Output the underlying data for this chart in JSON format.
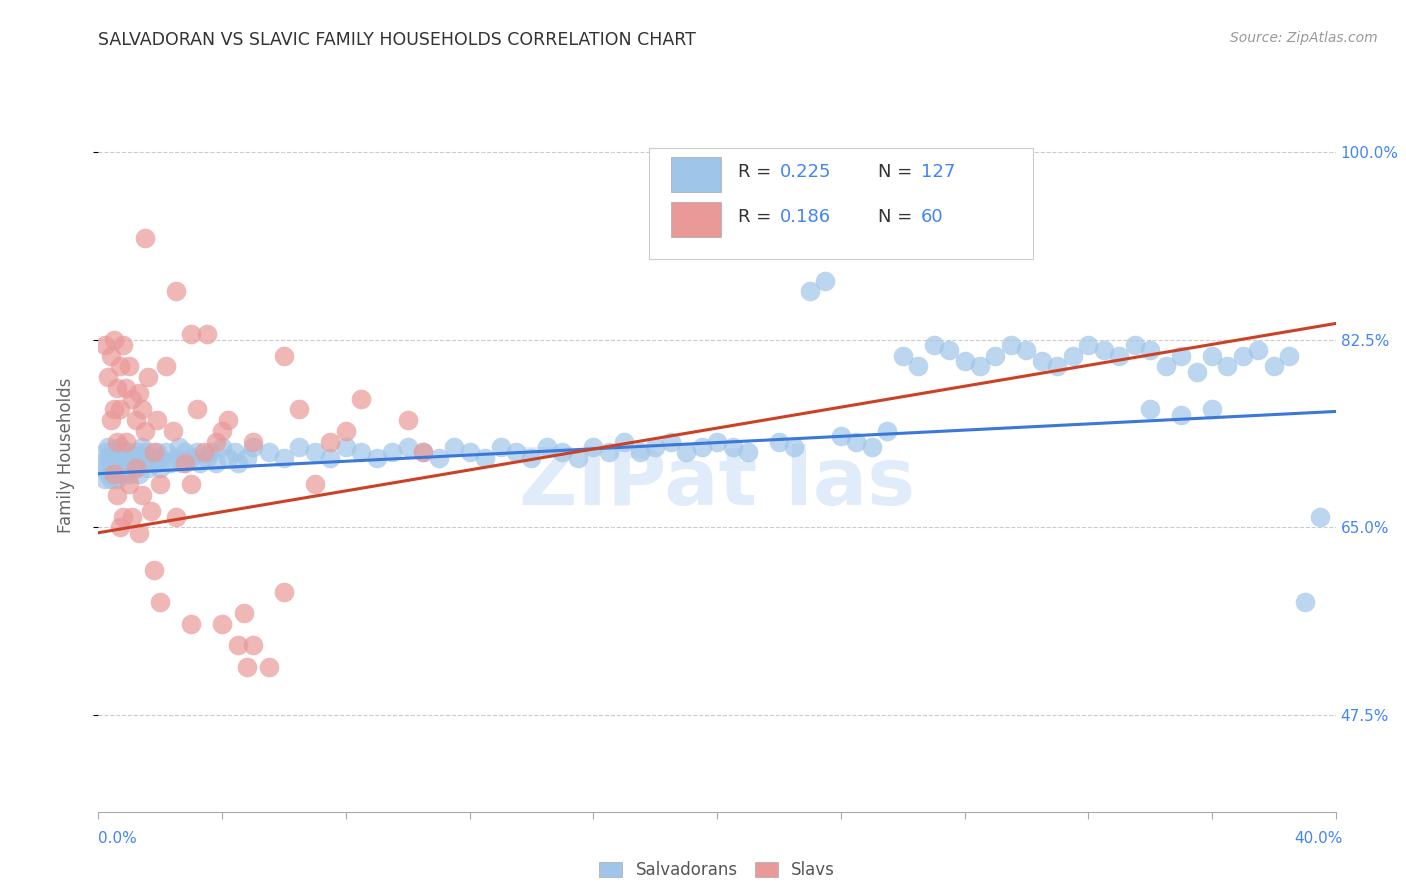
{
  "title": "SALVADORAN VS SLAVIC FAMILY HOUSEHOLDS CORRELATION CHART",
  "source": "Source: ZipAtlas.com",
  "ylabel": "Family Households",
  "yticks": [
    "47.5%",
    "65.0%",
    "82.5%",
    "100.0%"
  ],
  "ytick_vals": [
    0.475,
    0.65,
    0.825,
    1.0
  ],
  "xlim": [
    0.0,
    0.4
  ],
  "ylim": [
    0.385,
    1.05
  ],
  "blue_color": "#9fc5e8",
  "pink_color": "#ea9999",
  "blue_line_color": "#3c78d8",
  "pink_line_color": "#cc4125",
  "legend_text_color": "#4285f4",
  "watermark_color": "#cce0f5",
  "blue_line_y0": 0.7,
  "blue_line_y1": 0.758,
  "pink_line_y0": 0.645,
  "pink_line_y1": 0.84,
  "blue_scatter": [
    [
      0.001,
      0.71
    ],
    [
      0.002,
      0.705
    ],
    [
      0.002,
      0.72
    ],
    [
      0.002,
      0.695
    ],
    [
      0.003,
      0.715
    ],
    [
      0.003,
      0.7
    ],
    [
      0.003,
      0.725
    ],
    [
      0.004,
      0.71
    ],
    [
      0.004,
      0.695
    ],
    [
      0.004,
      0.72
    ],
    [
      0.005,
      0.705
    ],
    [
      0.005,
      0.715
    ],
    [
      0.005,
      0.7
    ],
    [
      0.006,
      0.71
    ],
    [
      0.006,
      0.72
    ],
    [
      0.006,
      0.695
    ],
    [
      0.007,
      0.715
    ],
    [
      0.007,
      0.705
    ],
    [
      0.007,
      0.725
    ],
    [
      0.008,
      0.71
    ],
    [
      0.008,
      0.7
    ],
    [
      0.008,
      0.72
    ],
    [
      0.009,
      0.715
    ],
    [
      0.009,
      0.705
    ],
    [
      0.01,
      0.71
    ],
    [
      0.01,
      0.72
    ],
    [
      0.01,
      0.7
    ],
    [
      0.011,
      0.715
    ],
    [
      0.012,
      0.705
    ],
    [
      0.012,
      0.72
    ],
    [
      0.013,
      0.71
    ],
    [
      0.013,
      0.7
    ],
    [
      0.014,
      0.715
    ],
    [
      0.014,
      0.725
    ],
    [
      0.015,
      0.71
    ],
    [
      0.015,
      0.72
    ],
    [
      0.016,
      0.705
    ],
    [
      0.017,
      0.715
    ],
    [
      0.018,
      0.71
    ],
    [
      0.019,
      0.72
    ],
    [
      0.02,
      0.715
    ],
    [
      0.02,
      0.705
    ],
    [
      0.022,
      0.72
    ],
    [
      0.023,
      0.71
    ],
    [
      0.025,
      0.715
    ],
    [
      0.026,
      0.725
    ],
    [
      0.027,
      0.71
    ],
    [
      0.028,
      0.72
    ],
    [
      0.03,
      0.715
    ],
    [
      0.032,
      0.72
    ],
    [
      0.033,
      0.71
    ],
    [
      0.035,
      0.715
    ],
    [
      0.036,
      0.72
    ],
    [
      0.038,
      0.71
    ],
    [
      0.04,
      0.725
    ],
    [
      0.042,
      0.715
    ],
    [
      0.044,
      0.72
    ],
    [
      0.045,
      0.71
    ],
    [
      0.048,
      0.715
    ],
    [
      0.05,
      0.725
    ],
    [
      0.055,
      0.72
    ],
    [
      0.06,
      0.715
    ],
    [
      0.065,
      0.725
    ],
    [
      0.07,
      0.72
    ],
    [
      0.075,
      0.715
    ],
    [
      0.08,
      0.725
    ],
    [
      0.085,
      0.72
    ],
    [
      0.09,
      0.715
    ],
    [
      0.095,
      0.72
    ],
    [
      0.1,
      0.725
    ],
    [
      0.105,
      0.72
    ],
    [
      0.11,
      0.715
    ],
    [
      0.115,
      0.725
    ],
    [
      0.12,
      0.72
    ],
    [
      0.125,
      0.715
    ],
    [
      0.13,
      0.725
    ],
    [
      0.135,
      0.72
    ],
    [
      0.14,
      0.715
    ],
    [
      0.145,
      0.725
    ],
    [
      0.15,
      0.72
    ],
    [
      0.155,
      0.715
    ],
    [
      0.16,
      0.725
    ],
    [
      0.165,
      0.72
    ],
    [
      0.17,
      0.73
    ],
    [
      0.175,
      0.72
    ],
    [
      0.18,
      0.725
    ],
    [
      0.185,
      0.73
    ],
    [
      0.19,
      0.72
    ],
    [
      0.195,
      0.725
    ],
    [
      0.2,
      0.73
    ],
    [
      0.205,
      0.725
    ],
    [
      0.21,
      0.72
    ],
    [
      0.22,
      0.73
    ],
    [
      0.225,
      0.725
    ],
    [
      0.23,
      0.87
    ],
    [
      0.235,
      0.88
    ],
    [
      0.24,
      0.735
    ],
    [
      0.245,
      0.73
    ],
    [
      0.25,
      0.725
    ],
    [
      0.255,
      0.74
    ],
    [
      0.26,
      0.81
    ],
    [
      0.265,
      0.8
    ],
    [
      0.27,
      0.82
    ],
    [
      0.275,
      0.815
    ],
    [
      0.28,
      0.805
    ],
    [
      0.285,
      0.8
    ],
    [
      0.29,
      0.81
    ],
    [
      0.295,
      0.82
    ],
    [
      0.3,
      0.815
    ],
    [
      0.305,
      0.805
    ],
    [
      0.31,
      0.8
    ],
    [
      0.315,
      0.81
    ],
    [
      0.32,
      0.82
    ],
    [
      0.325,
      0.815
    ],
    [
      0.33,
      0.81
    ],
    [
      0.335,
      0.82
    ],
    [
      0.34,
      0.815
    ],
    [
      0.345,
      0.8
    ],
    [
      0.35,
      0.81
    ],
    [
      0.355,
      0.795
    ],
    [
      0.36,
      0.81
    ],
    [
      0.365,
      0.8
    ],
    [
      0.37,
      0.81
    ],
    [
      0.375,
      0.815
    ],
    [
      0.38,
      0.8
    ],
    [
      0.385,
      0.81
    ],
    [
      0.39,
      0.58
    ],
    [
      0.395,
      0.66
    ],
    [
      0.34,
      0.76
    ],
    [
      0.35,
      0.755
    ],
    [
      0.36,
      0.76
    ]
  ],
  "pink_scatter": [
    [
      0.002,
      0.82
    ],
    [
      0.003,
      0.79
    ],
    [
      0.004,
      0.81
    ],
    [
      0.004,
      0.75
    ],
    [
      0.005,
      0.825
    ],
    [
      0.005,
      0.76
    ],
    [
      0.005,
      0.7
    ],
    [
      0.006,
      0.78
    ],
    [
      0.006,
      0.73
    ],
    [
      0.006,
      0.68
    ],
    [
      0.007,
      0.8
    ],
    [
      0.007,
      0.76
    ],
    [
      0.007,
      0.65
    ],
    [
      0.008,
      0.82
    ],
    [
      0.008,
      0.66
    ],
    [
      0.009,
      0.78
    ],
    [
      0.009,
      0.73
    ],
    [
      0.01,
      0.8
    ],
    [
      0.01,
      0.69
    ],
    [
      0.011,
      0.77
    ],
    [
      0.011,
      0.66
    ],
    [
      0.012,
      0.75
    ],
    [
      0.012,
      0.705
    ],
    [
      0.013,
      0.775
    ],
    [
      0.013,
      0.645
    ],
    [
      0.014,
      0.76
    ],
    [
      0.014,
      0.68
    ],
    [
      0.015,
      0.74
    ],
    [
      0.015,
      0.92
    ],
    [
      0.016,
      0.79
    ],
    [
      0.017,
      0.665
    ],
    [
      0.018,
      0.72
    ],
    [
      0.018,
      0.61
    ],
    [
      0.019,
      0.75
    ],
    [
      0.02,
      0.69
    ],
    [
      0.02,
      0.58
    ],
    [
      0.022,
      0.8
    ],
    [
      0.024,
      0.74
    ],
    [
      0.025,
      0.87
    ],
    [
      0.025,
      0.66
    ],
    [
      0.028,
      0.71
    ],
    [
      0.03,
      0.83
    ],
    [
      0.03,
      0.69
    ],
    [
      0.03,
      0.56
    ],
    [
      0.032,
      0.76
    ],
    [
      0.034,
      0.72
    ],
    [
      0.035,
      0.83
    ],
    [
      0.038,
      0.73
    ],
    [
      0.04,
      0.74
    ],
    [
      0.04,
      0.56
    ],
    [
      0.042,
      0.75
    ],
    [
      0.045,
      0.54
    ],
    [
      0.047,
      0.57
    ],
    [
      0.048,
      0.52
    ],
    [
      0.05,
      0.54
    ],
    [
      0.05,
      0.73
    ],
    [
      0.055,
      0.52
    ],
    [
      0.06,
      0.59
    ],
    [
      0.06,
      0.81
    ],
    [
      0.065,
      0.76
    ],
    [
      0.07,
      0.69
    ],
    [
      0.075,
      0.73
    ],
    [
      0.08,
      0.74
    ],
    [
      0.085,
      0.77
    ],
    [
      0.1,
      0.75
    ],
    [
      0.105,
      0.72
    ]
  ]
}
